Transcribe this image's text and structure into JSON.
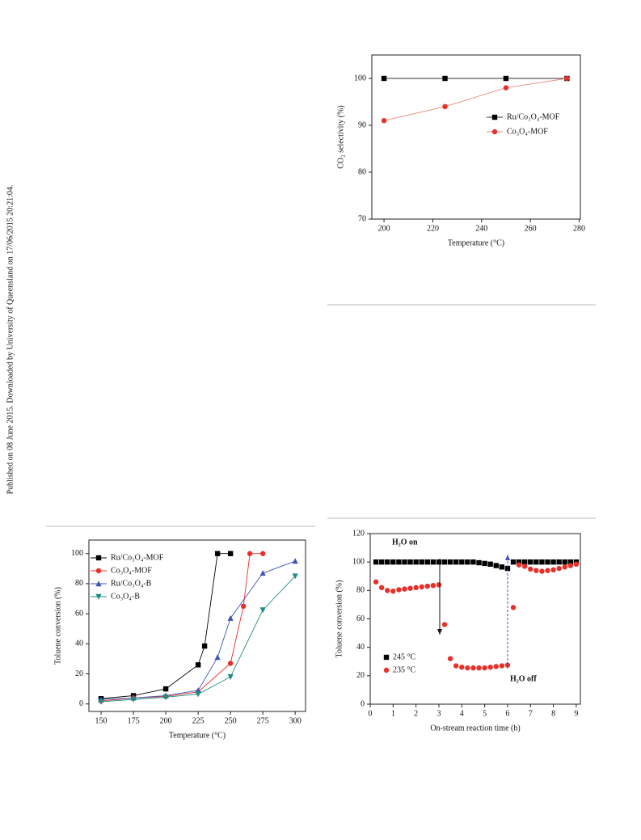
{
  "margin_text": "Published on 08 June 2015. Downloaded by University of Queensland on 17/06/2015 20:21:04.",
  "chart_data": [
    {
      "type": "line",
      "x_label": "Temperature (°C)",
      "y_label": "CO₂ selectivity (%)",
      "x": [
        200,
        225,
        250,
        275
      ],
      "series": [
        {
          "name": "Ru/Co₃O₄-MOF",
          "color": "#000000",
          "line_color": "#333333",
          "marker": "square",
          "values": [
            100,
            100,
            100,
            100
          ]
        },
        {
          "name": "Co₃O₄-MOF",
          "color": "#e8302a",
          "line_color": "#f08a80",
          "marker": "circle",
          "values": [
            91,
            94,
            98,
            100
          ]
        }
      ],
      "xlim": [
        195,
        280.5
      ],
      "xticks": [
        200,
        220,
        240,
        260,
        280
      ],
      "ylim": [
        70,
        105
      ],
      "yticks": [
        70,
        80,
        90,
        100
      ],
      "legend": "right"
    },
    {
      "type": "line",
      "x_label": "Temperature (°C)",
      "y_label": "Toluene conversion (%)",
      "series": [
        {
          "name": "Ru/Co₃O₄-MOF",
          "color": "#000000",
          "line_color": "#000000",
          "marker": "square",
          "x": [
            150,
            175,
            200,
            225,
            230,
            240,
            250
          ],
          "values": [
            3.5,
            5.5,
            10,
            26,
            38.5,
            100,
            100
          ]
        },
        {
          "name": "Co₃O₄-MOF",
          "color": "#e8302a",
          "line_color": "#e8302a",
          "marker": "circle",
          "x": [
            150,
            175,
            200,
            225,
            250,
            260,
            265,
            275
          ],
          "values": [
            2,
            4,
            5,
            8,
            27,
            65,
            100,
            100
          ]
        },
        {
          "name": "Ru/Co₃O₄-B",
          "color": "#3d55b8",
          "line_color": "#3d55b8",
          "marker": "triangle-up",
          "x": [
            150,
            175,
            200,
            225,
            240,
            250,
            275,
            300
          ],
          "values": [
            3,
            4,
            5.5,
            9,
            31,
            57,
            87,
            95
          ]
        },
        {
          "name": "Co₃O₄-B",
          "color": "#1f8c80",
          "line_color": "#1f8c80",
          "marker": "triangle-down",
          "x": [
            150,
            175,
            200,
            225,
            250,
            275,
            300
          ],
          "values": [
            1.5,
            3,
            4.5,
            6.5,
            18,
            62.5,
            85
          ]
        }
      ],
      "xlim": [
        140.6,
        308
      ],
      "xticks": [
        150,
        175,
        200,
        225,
        250,
        275,
        300
      ],
      "ylim": [
        -5,
        109
      ],
      "yticks": [
        0,
        20,
        40,
        60,
        80,
        100
      ],
      "legend": "upper left"
    },
    {
      "type": "scatter",
      "x_label": "On-stream reaction time (h)",
      "y_label": "Toluene conversion (%)",
      "annotations": [
        "H₂O on",
        "H₂O off"
      ],
      "series": [
        {
          "name": "245 °C",
          "color": "#000000",
          "marker": "square",
          "x": [
            0.25,
            0.5,
            0.75,
            1,
            1.25,
            1.5,
            1.75,
            2,
            2.25,
            2.5,
            2.75,
            3,
            3.25,
            3.5,
            3.75,
            4,
            4.25,
            4.5,
            4.75,
            5,
            5.25,
            5.5,
            5.75,
            6,
            6.25,
            6.5,
            6.75,
            7,
            7.25,
            7.5,
            7.75,
            8,
            8.25,
            8.5,
            8.75,
            9
          ],
          "values": [
            100,
            100,
            100,
            100,
            100,
            100,
            100,
            100,
            100,
            100,
            100,
            100,
            100,
            100,
            100,
            100,
            100,
            100,
            99.5,
            99,
            98.5,
            97.5,
            96.5,
            95.5,
            100,
            100,
            100,
            100,
            100,
            100,
            100,
            100,
            100,
            100,
            100,
            100
          ]
        },
        {
          "name": "235 °C",
          "color": "#e8302a",
          "marker": "circle",
          "x": [
            0.25,
            0.5,
            0.75,
            1,
            1.25,
            1.5,
            1.75,
            2,
            2.25,
            2.5,
            2.75,
            3,
            3.25,
            3.5,
            3.75,
            4,
            4.25,
            4.5,
            4.75,
            5,
            5.25,
            5.5,
            5.75,
            6,
            6.25,
            6.5,
            6.75,
            7,
            7.25,
            7.5,
            7.75,
            8,
            8.25,
            8.5,
            8.75,
            9
          ],
          "values": [
            86,
            82,
            80,
            79.5,
            80.5,
            81,
            81.5,
            82,
            82.5,
            83,
            83.5,
            84,
            56,
            32,
            27,
            26,
            25.5,
            25.5,
            25.5,
            25.5,
            26,
            26.5,
            27,
            27.5,
            68,
            98,
            97,
            95,
            94,
            93.5,
            94,
            94.5,
            95.5,
            96.5,
            97.5,
            98.5
          ]
        }
      ],
      "xlim": [
        0,
        9.18
      ],
      "xticks": [
        0,
        1,
        2,
        3,
        4,
        5,
        6,
        7,
        8,
        9
      ],
      "ylim": [
        0,
        120
      ],
      "yticks": [
        0,
        20,
        40,
        60,
        80,
        100,
        120
      ],
      "legend": "lower left"
    }
  ]
}
